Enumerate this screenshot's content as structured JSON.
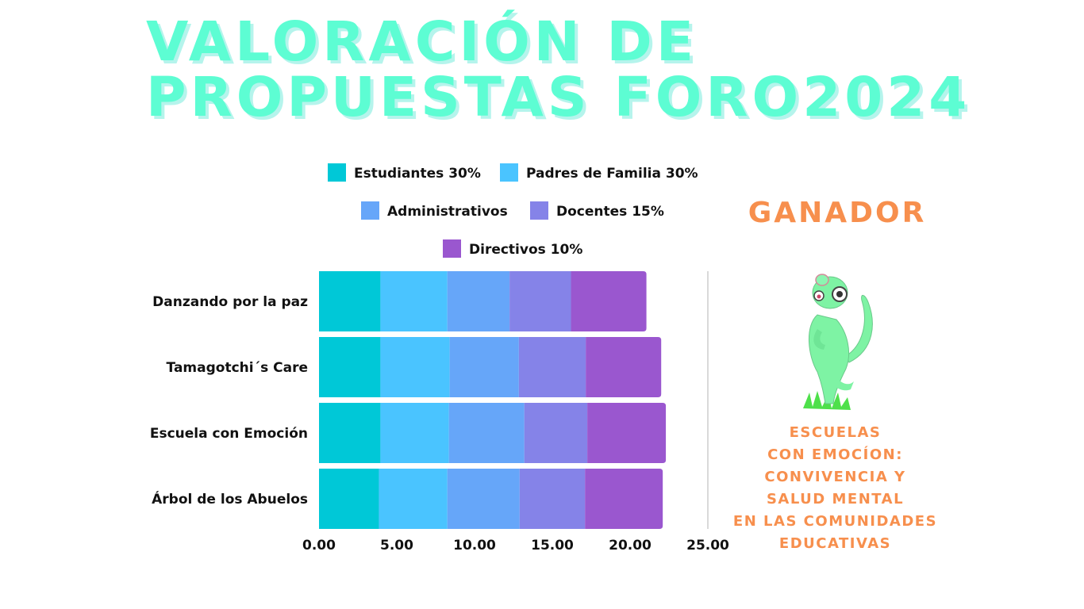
{
  "title": {
    "line1": "VALORACIÓN DE",
    "line2": "PROPUESTAS FORO2024"
  },
  "colors": {
    "title": "#5dfdd3",
    "accent": "#f78f4d",
    "estudiantes": "#00c8d7",
    "padres": "#4ac4ff",
    "administrativos": "#66a6f9",
    "docentes": "#8583e8",
    "directivos": "#9a57cf"
  },
  "chart_data": {
    "type": "bar",
    "orientation": "horizontal",
    "stacked": true,
    "categories": [
      "Danzando por la paz",
      "Tamagotchi´s Care",
      "Escuela con Emoción",
      "Árbol de los Abuelos"
    ],
    "series": [
      {
        "name": "Estudiantes 30%",
        "values": [
          3.95,
          3.95,
          3.95,
          3.85
        ]
      },
      {
        "name": "Padres de Familia 30%",
        "values": [
          4.3,
          4.45,
          4.4,
          4.4
        ]
      },
      {
        "name": "Administrativos",
        "values": [
          4.0,
          4.45,
          4.85,
          4.65
        ]
      },
      {
        "name": "Docentes 15%",
        "values": [
          3.95,
          4.3,
          4.05,
          4.2
        ]
      },
      {
        "name": "Directivos 10%",
        "values": [
          4.85,
          4.85,
          5.05,
          5.0
        ]
      }
    ],
    "xlim": [
      0,
      25
    ],
    "xticks": [
      "0.00",
      "5.00",
      "10.00",
      "15.00",
      "20.00",
      "25.00"
    ],
    "legend_position": "top",
    "grid": false
  },
  "winner": {
    "heading": "GANADOR",
    "lines": [
      "ESCUELAS",
      "CON EMOCÍON:",
      "CONVIVENCIA Y",
      "SALUD MENTAL",
      "EN LAS COMUNIDADES",
      "EDUCATIVAS"
    ],
    "mascot_icon": "chameleon-icon"
  }
}
